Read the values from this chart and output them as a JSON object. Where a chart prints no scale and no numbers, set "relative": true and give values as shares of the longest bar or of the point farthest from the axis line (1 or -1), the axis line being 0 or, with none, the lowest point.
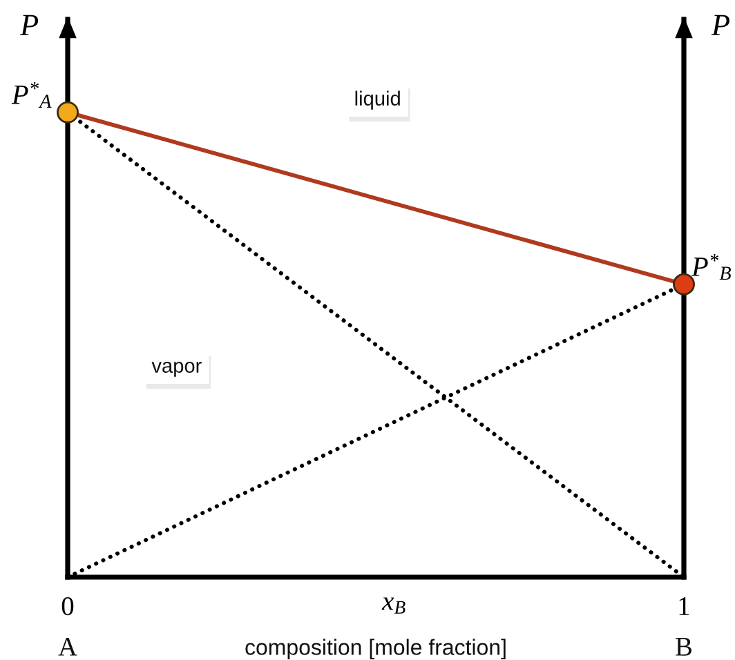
{
  "chart_data": {
    "type": "line",
    "relative": true,
    "xlabel": "x$_{B}$",
    "ylabel": "P",
    "y2label": "P",
    "x": [
      0,
      1
    ],
    "xlim": [
      0,
      1
    ],
    "xticks": [
      0,
      1
    ],
    "series": [
      {
        "values": [
          1,
          0
        ],
        "color": "#000000",
        "line_style": "dotted"
      },
      {
        "values": [
          0,
          0.63
        ],
        "color": "#000000",
        "line_style": "dotted"
      },
      {
        "values": [
          1,
          0.63
        ],
        "color": "#b03a1e",
        "line_style": "solid"
      },
      {
        "type": "scatter",
        "values": [
          1,
          0.63
        ],
        "colors": [
          "#f2a91b",
          "#dc3d12"
        ],
        "marker": "circle"
      }
    ],
    "annotations": [
      "A",
      "composition [mole fraction]",
      "B",
      "liquid",
      "vapor",
      {
        "text": "P$^{*}$$_{A}$",
        "x": 0,
        "y": 1
      },
      {
        "text": "P$^{*}$$_{B}$",
        "x": 1,
        "y": 0.63
      }
    ]
  }
}
